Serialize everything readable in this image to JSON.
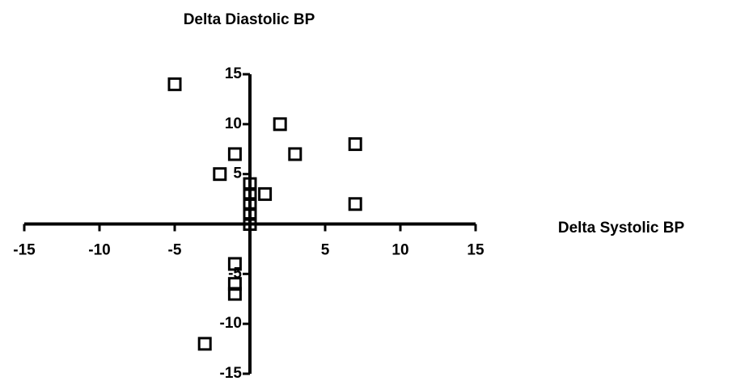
{
  "chart_data": {
    "type": "scatter",
    "x_label": "Delta Systolic BP",
    "y_label": "Delta Diastolic BP",
    "x": [
      -5,
      2,
      7,
      -1,
      3,
      -2,
      0,
      1,
      0,
      7,
      0,
      0,
      0,
      -1,
      -1,
      -1,
      -3
    ],
    "values": [
      14,
      10,
      8,
      7,
      7,
      5,
      4,
      3,
      3,
      2,
      2,
      1,
      0,
      -4,
      -6,
      -7,
      -12
    ],
    "color": "#000000",
    "xlim": [
      -15,
      15
    ],
    "xticks": [
      -15,
      -10,
      -5,
      5,
      10,
      15
    ],
    "ylim": [
      -15,
      15
    ],
    "yticks": [
      -15,
      -10,
      -5,
      5,
      10,
      15
    ]
  }
}
